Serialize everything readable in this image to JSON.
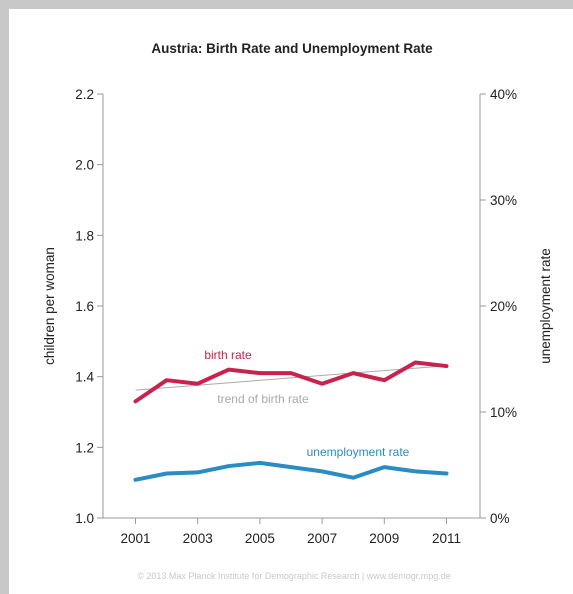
{
  "chart_data": {
    "type": "line",
    "title": "Austria: Birth Rate and Unemployment Rate",
    "ylabel_left": "children per woman",
    "ylabel_right": "unemployment rate",
    "x": [
      2001,
      2002,
      2003,
      2004,
      2005,
      2006,
      2007,
      2008,
      2009,
      2010,
      2011
    ],
    "x_ticks": [
      "2001",
      "2003",
      "2005",
      "2007",
      "2009",
      "2011"
    ],
    "y_left_ticks": [
      "1.0",
      "1.2",
      "1.4",
      "1.6",
      "1.8",
      "2.0",
      "2.2"
    ],
    "y_right_ticks": [
      "0%",
      "10%",
      "20%",
      "30%",
      "40%"
    ],
    "ylim_left": [
      1.0,
      2.2
    ],
    "ylim_right": [
      0,
      40
    ],
    "grid": false,
    "series": [
      {
        "name": "birth rate",
        "axis": "left",
        "color": "#c8234f",
        "values": [
          1.33,
          1.39,
          1.38,
          1.42,
          1.41,
          1.41,
          1.38,
          1.41,
          1.39,
          1.44,
          1.43
        ]
      },
      {
        "name": "unemployment rate",
        "axis": "right",
        "color": "#2a8cc4",
        "values": [
          3.6,
          4.2,
          4.3,
          4.9,
          5.2,
          4.8,
          4.4,
          3.8,
          4.8,
          4.4,
          4.2
        ]
      }
    ],
    "trend": {
      "label": "trend of birth rate",
      "axis": "left",
      "color": "#aaaaaa",
      "start": [
        2001,
        1.362
      ],
      "end": [
        2011,
        1.431
      ]
    },
    "footer": "© 2013 Max Planck Institute for Demographic Research | www.demogr.mpg.de"
  }
}
